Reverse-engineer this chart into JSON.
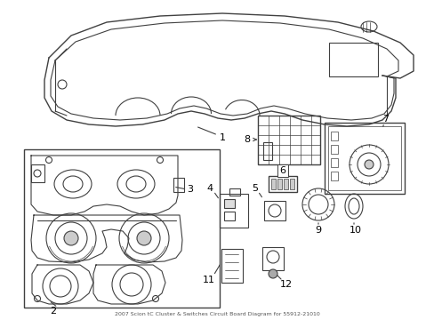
{
  "title": "2007 Scion tC Cluster & Switches Circuit Board Diagram for 55912-21010",
  "background_color": "#ffffff",
  "line_color": "#404040",
  "label_color": "#000000",
  "figsize": [
    4.89,
    3.6
  ],
  "dpi": 100
}
